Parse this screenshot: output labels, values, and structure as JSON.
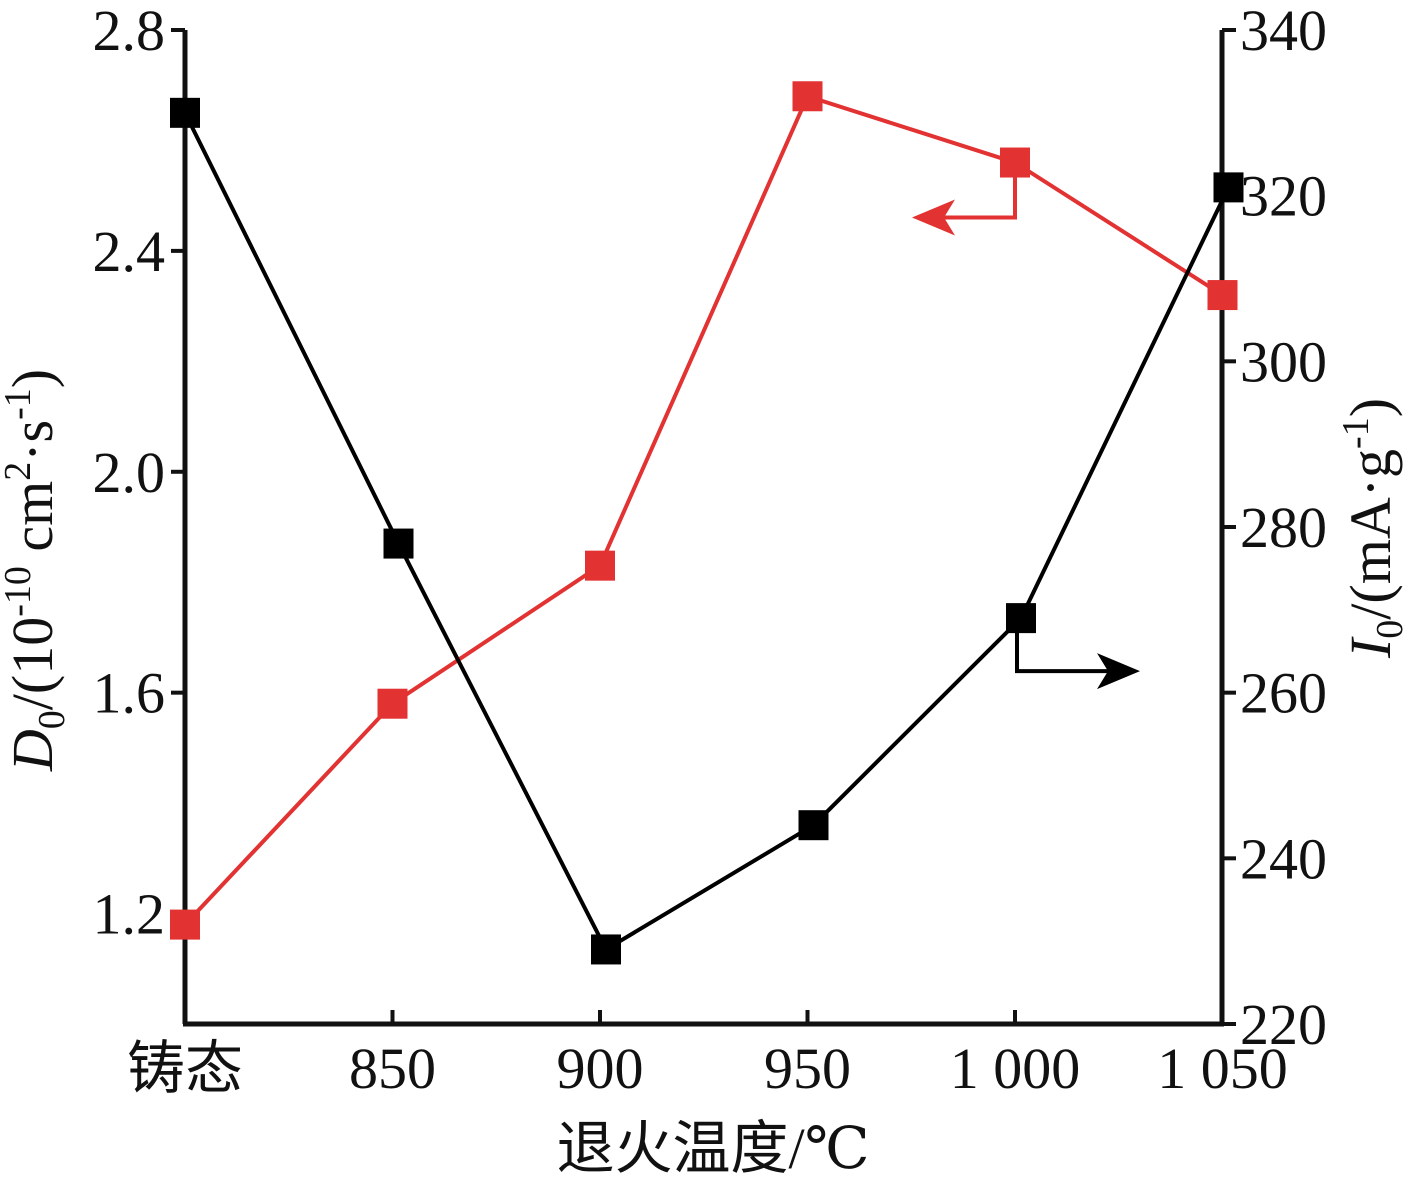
{
  "chart_data": {
    "type": "line",
    "categories": [
      "铸态",
      "850",
      "900",
      "950",
      "1 000",
      "1 050"
    ],
    "xlabel": "退火温度/℃",
    "y_left": {
      "label_italic": "D",
      "label_sub": "0",
      "label_rest_1": "/(10",
      "label_sup_1": "-10",
      "label_rest_2": " cm",
      "label_sup_2": "2",
      "label_rest_3": "·s",
      "label_sup_3": "-1",
      "label_rest_4": ")",
      "ylim": [
        1.0,
        2.8
      ],
      "ticks": [
        1.2,
        1.6,
        2.0,
        2.4,
        2.8
      ],
      "tick_labels": [
        "1.2",
        "1.6",
        "2.0",
        "2.4",
        "2.8"
      ]
    },
    "y_right": {
      "label_italic": "I",
      "label_sub": "0",
      "label_rest_1": "/(mA·g",
      "label_sup_1": "-1",
      "label_rest_2": ")",
      "ylim": [
        220,
        340
      ],
      "ticks": [
        220,
        240,
        260,
        280,
        300,
        320,
        340
      ],
      "tick_labels": [
        "220",
        "240",
        "260",
        "280",
        "300",
        "320",
        "340"
      ]
    },
    "series": [
      {
        "axis": "left",
        "color": "#e23232",
        "marker": "square",
        "values": [
          1.18,
          1.58,
          1.83,
          2.68,
          2.56,
          2.32
        ]
      },
      {
        "axis": "right",
        "color": "#000000",
        "marker": "square",
        "values": [
          330,
          278,
          229,
          244,
          269,
          321
        ]
      }
    ],
    "annotations": [
      {
        "type": "arrow",
        "points_to": "left axis",
        "color": "#e23232",
        "series_index": 0
      },
      {
        "type": "arrow",
        "points_to": "right axis",
        "color": "#000000",
        "series_index": 1
      }
    ],
    "grid": false,
    "legend": "none"
  }
}
